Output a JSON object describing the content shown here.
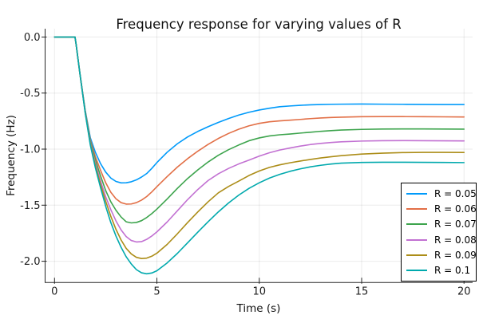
{
  "chart_data": {
    "type": "line",
    "title": "Frequency response for varying values of R",
    "xlabel": "Time (s)",
    "ylabel": "Frequency (Hz)",
    "xlim": [
      -0.46,
      20.42
    ],
    "ylim": [
      -2.19,
      0.074
    ],
    "grid": true,
    "legend_position": "bottom-right",
    "xticks": {
      "values": [
        0,
        5,
        10,
        15,
        20
      ],
      "labels": [
        "0",
        "5",
        "10",
        "15",
        "20"
      ]
    },
    "yticks": {
      "values": [
        0.0,
        -0.5,
        -1.0,
        -1.5,
        -2.0
      ],
      "labels": [
        "0.0",
        "-0.5",
        "-1.0",
        "-1.5",
        "-2.0"
      ]
    },
    "x": [
      0,
      0.5,
      1,
      1.05,
      1.25,
      1.5,
      1.75,
      2,
      2.25,
      2.5,
      2.75,
      3,
      3.25,
      3.5,
      3.75,
      4,
      4.25,
      4.5,
      4.75,
      5,
      5.5,
      6,
      6.5,
      7,
      7.5,
      8,
      8.5,
      9,
      9.5,
      10,
      10.5,
      11,
      11.5,
      12,
      12.5,
      13,
      13.5,
      14,
      15,
      16,
      17,
      18,
      19,
      20
    ],
    "series": [
      {
        "label": "R = 0.05",
        "color": "#009AFA",
        "y": [
          0,
          0,
          0,
          -0.06,
          -0.34,
          -0.655,
          -0.9,
          -1.03,
          -1.13,
          -1.205,
          -1.258,
          -1.288,
          -1.301,
          -1.3,
          -1.291,
          -1.274,
          -1.249,
          -1.218,
          -1.172,
          -1.12,
          -1.028,
          -0.952,
          -0.891,
          -0.842,
          -0.8,
          -0.762,
          -0.727,
          -0.696,
          -0.671,
          -0.651,
          -0.635,
          -0.622,
          -0.615,
          -0.609,
          -0.605,
          -0.602,
          -0.6,
          -0.599,
          -0.598,
          -0.599,
          -0.6,
          -0.601,
          -0.602,
          -0.602
        ]
      },
      {
        "label": "R = 0.06",
        "color": "#E26F46",
        "y": [
          0,
          0,
          0,
          -0.06,
          -0.34,
          -0.66,
          -0.92,
          -1.07,
          -1.19,
          -1.3,
          -1.385,
          -1.443,
          -1.477,
          -1.49,
          -1.489,
          -1.477,
          -1.455,
          -1.423,
          -1.382,
          -1.335,
          -1.245,
          -1.16,
          -1.085,
          -1.018,
          -0.958,
          -0.905,
          -0.86,
          -0.822,
          -0.792,
          -0.77,
          -0.756,
          -0.748,
          -0.742,
          -0.735,
          -0.728,
          -0.722,
          -0.718,
          -0.715,
          -0.711,
          -0.71,
          -0.71,
          -0.711,
          -0.712,
          -0.713
        ]
      },
      {
        "label": "R = 0.07",
        "color": "#3DA44D",
        "y": [
          0,
          0,
          0,
          -0.06,
          -0.34,
          -0.665,
          -0.93,
          -1.1,
          -1.24,
          -1.37,
          -1.47,
          -1.545,
          -1.605,
          -1.648,
          -1.658,
          -1.654,
          -1.638,
          -1.61,
          -1.575,
          -1.535,
          -1.445,
          -1.35,
          -1.262,
          -1.185,
          -1.115,
          -1.055,
          -1.005,
          -0.963,
          -0.925,
          -0.9,
          -0.882,
          -0.872,
          -0.865,
          -0.857,
          -0.849,
          -0.841,
          -0.835,
          -0.83,
          -0.824,
          -0.821,
          -0.82,
          -0.82,
          -0.821,
          -0.822
        ]
      },
      {
        "label": "R = 0.08",
        "color": "#C271D2",
        "y": [
          0,
          0,
          0,
          -0.06,
          -0.34,
          -0.67,
          -0.945,
          -1.13,
          -1.285,
          -1.425,
          -1.54,
          -1.64,
          -1.72,
          -1.78,
          -1.815,
          -1.828,
          -1.825,
          -1.805,
          -1.775,
          -1.738,
          -1.65,
          -1.55,
          -1.45,
          -1.36,
          -1.28,
          -1.22,
          -1.172,
          -1.132,
          -1.098,
          -1.062,
          -1.032,
          -1.008,
          -0.99,
          -0.973,
          -0.959,
          -0.949,
          -0.941,
          -0.935,
          -0.928,
          -0.925,
          -0.924,
          -0.925,
          -0.926,
          -0.927
        ]
      },
      {
        "label": "R = 0.09",
        "color": "#AC8D18",
        "y": [
          0,
          0,
          0,
          -0.06,
          -0.34,
          -0.675,
          -0.955,
          -1.15,
          -1.315,
          -1.465,
          -1.6,
          -1.715,
          -1.81,
          -1.885,
          -1.935,
          -1.965,
          -1.976,
          -1.972,
          -1.955,
          -1.928,
          -1.85,
          -1.755,
          -1.655,
          -1.56,
          -1.47,
          -1.39,
          -1.333,
          -1.285,
          -1.235,
          -1.195,
          -1.163,
          -1.14,
          -1.122,
          -1.106,
          -1.092,
          -1.079,
          -1.068,
          -1.058,
          -1.044,
          -1.036,
          -1.031,
          -1.029,
          -1.029,
          -1.03
        ]
      },
      {
        "label": "R = 0.1",
        "color": "#00A9AD",
        "y": [
          0,
          0,
          0,
          -0.06,
          -0.34,
          -0.68,
          -0.965,
          -1.17,
          -1.345,
          -1.51,
          -1.655,
          -1.775,
          -1.875,
          -1.96,
          -2.025,
          -2.075,
          -2.103,
          -2.112,
          -2.105,
          -2.085,
          -2.015,
          -1.93,
          -1.835,
          -1.74,
          -1.648,
          -1.56,
          -1.48,
          -1.41,
          -1.35,
          -1.3,
          -1.258,
          -1.225,
          -1.198,
          -1.176,
          -1.158,
          -1.144,
          -1.133,
          -1.125,
          -1.119,
          -1.117,
          -1.117,
          -1.118,
          -1.119,
          -1.12
        ]
      }
    ],
    "colors": {
      "background": "#ffffff",
      "spine": "#262626",
      "grid": "rgba(0,0,0,0.08)",
      "tick_label": "#1c1c1c",
      "legend_border": "#000000"
    }
  }
}
